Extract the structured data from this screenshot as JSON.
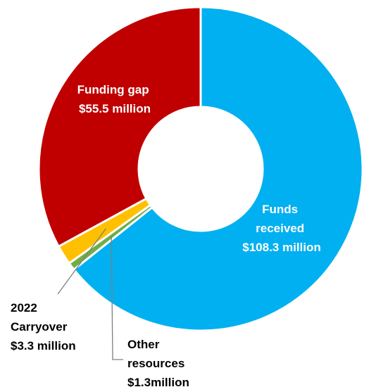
{
  "chart_data": {
    "type": "donut",
    "units": "million USD",
    "slices": [
      {
        "key": "funds_received",
        "label_lines": [
          "Funds",
          "received",
          "$108.3 million"
        ],
        "value": 108.3,
        "color": "#00b0f0"
      },
      {
        "key": "other_resources",
        "label_lines": [
          "Other",
          "resources",
          "$1.3million"
        ],
        "value": 1.3,
        "color": "#70ad47"
      },
      {
        "key": "carryover_2022",
        "label_lines": [
          "2022",
          "Carryover",
          "$3.3 million"
        ],
        "value": 3.3,
        "color": "#ffc000"
      },
      {
        "key": "funding_gap",
        "label_lines": [
          "Funding gap",
          "$55.5 million"
        ],
        "value": 55.5,
        "color": "#c00000"
      }
    ],
    "start": "top (12 o'clock)",
    "direction": "clockwise",
    "label_colors": {
      "inside": "#ffffff",
      "outside": "#000000"
    }
  }
}
